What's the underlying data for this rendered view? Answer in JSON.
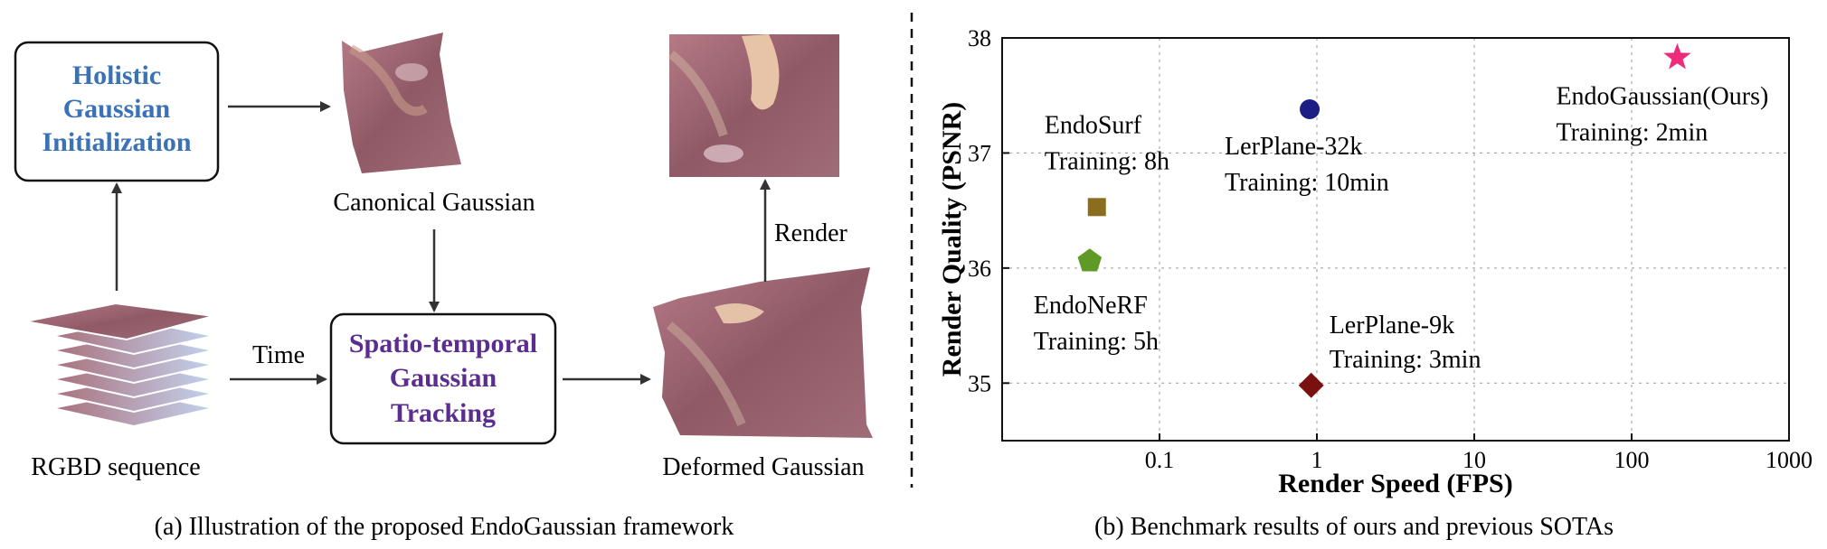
{
  "left_panel": {
    "holistic_init": [
      "Holistic",
      "Gaussian",
      "Initialization"
    ],
    "spatio_temporal": [
      "Spatio-temporal",
      "Gaussian",
      "Tracking"
    ],
    "canonical_label": "Canonical Gaussian",
    "deformed_label": "Deformed Gaussian",
    "rgbd_label": "RGBD sequence",
    "time_label": "Time",
    "render_label": "Render",
    "caption": "(a) Illustration of the proposed EndoGaussian framework",
    "colors": {
      "holistic": "#3a72b5",
      "spatio": "#5b2d8e",
      "tissue": "#9b6670"
    }
  },
  "chart_data": {
    "type": "scatter",
    "xlabel": "Render Speed (FPS)",
    "ylabel": "Render Quality (PSNR)",
    "x_scale": "log",
    "xlim": [
      0.01,
      1000
    ],
    "ylim": [
      34.5,
      38
    ],
    "x_tick_labels": [
      "0.1",
      "1",
      "10",
      "100",
      "1000"
    ],
    "x_ticks": [
      0.1,
      1,
      10,
      100,
      1000
    ],
    "y_ticks": [
      35,
      36,
      37,
      38
    ],
    "grid": true,
    "points": [
      {
        "method": "EndoSurf",
        "training": "Training: 8h",
        "fps": 0.04,
        "psnr": 36.53,
        "marker": "square",
        "color": "#8a6d1f"
      },
      {
        "method": "EndoNeRF",
        "training": "Training: 5h",
        "fps": 0.036,
        "psnr": 36.06,
        "marker": "pentagon",
        "color": "#5f9a26"
      },
      {
        "method": "LerPlane-32k",
        "training": "Training: 10min",
        "fps": 0.9,
        "psnr": 37.38,
        "marker": "circle",
        "color": "#1c1e86"
      },
      {
        "method": "LerPlane-9k",
        "training": "Training: 3min",
        "fps": 0.92,
        "psnr": 34.98,
        "marker": "diamond",
        "color": "#7b1010"
      },
      {
        "method": "EndoGaussian(Ours)",
        "training": "Training: 2min",
        "fps": 195,
        "psnr": 37.83,
        "marker": "star",
        "color": "#ee2b7b"
      }
    ],
    "caption": "(b) Benchmark results of ours and previous SOTAs"
  }
}
